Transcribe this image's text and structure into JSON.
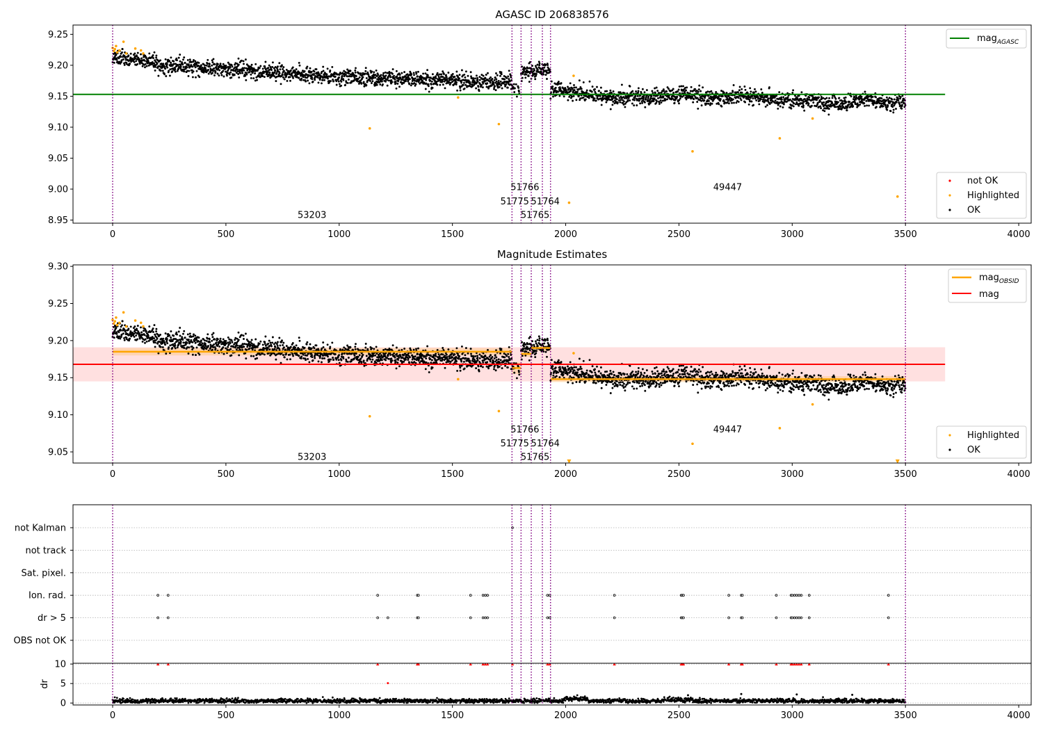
{
  "chart_data": [
    {
      "type": "scatter",
      "title": "AGASC ID 206838576",
      "xlim": [
        -175,
        4055
      ],
      "ylim": [
        8.945,
        9.265
      ],
      "xticks": [
        "0",
        "500",
        "1000",
        "1500",
        "2000",
        "2500",
        "3000",
        "3500",
        "4000"
      ],
      "yticks": [
        "8.95",
        "9.00",
        "9.05",
        "9.10",
        "9.15",
        "9.20",
        "9.25"
      ],
      "legend_top": {
        "placement": "top-right",
        "entries": [
          {
            "label": "mag",
            "sub": "AGASC",
            "color": "#008000"
          }
        ]
      },
      "legend_bottom": {
        "placement": "bottom-right",
        "entries": [
          {
            "label": "not OK",
            "color": "#ff0000"
          },
          {
            "label": "Highlighted",
            "color": "#ffa500"
          },
          {
            "label": "OK",
            "color": "#000000"
          }
        ]
      },
      "mag_agasc": 9.153,
      "agasc_line_x": [
        -175,
        3675
      ],
      "obsid_boundaries": [
        0,
        1763,
        1803,
        1848,
        1897,
        1933,
        3500
      ],
      "obsid_labels": [
        {
          "text": "53203",
          "x": 880,
          "y": 8.958
        },
        {
          "text": "51766",
          "x": 1820,
          "y": 9.003
        },
        {
          "text": "51775",
          "x": 1775,
          "y": 8.98
        },
        {
          "text": "51764",
          "x": 1910,
          "y": 8.98
        },
        {
          "text": "51765",
          "x": 1865,
          "y": 8.958
        },
        {
          "text": "49447",
          "x": 2715,
          "y": 9.003
        }
      ],
      "trend_segments": [
        {
          "x": [
            0,
            200
          ],
          "y": [
            9.212,
            9.205
          ]
        },
        {
          "x": [
            200,
            600
          ],
          "y": [
            9.2,
            9.192
          ]
        },
        {
          "x": [
            600,
            1000
          ],
          "y": [
            9.19,
            9.181
          ]
        },
        {
          "x": [
            1000,
            1400
          ],
          "y": [
            9.182,
            9.176
          ]
        },
        {
          "x": [
            1400,
            1763
          ],
          "y": [
            9.177,
            9.172
          ]
        },
        {
          "x": [
            1763,
            1803
          ],
          "y": [
            9.162,
            9.155
          ]
        },
        {
          "x": [
            1803,
            1933
          ],
          "y": [
            9.186,
            9.194
          ]
        },
        {
          "x": [
            1933,
            2200
          ],
          "y": [
            9.162,
            9.148
          ]
        },
        {
          "x": [
            2200,
            2800
          ],
          "y": [
            9.148,
            9.151
          ]
        },
        {
          "x": [
            2800,
            3100
          ],
          "y": [
            9.147,
            9.142
          ]
        },
        {
          "x": [
            3100,
            3500
          ],
          "y": [
            9.14,
            9.141
          ]
        }
      ],
      "highlighted_points": [
        {
          "x": 0,
          "y": 9.228
        },
        {
          "x": 5,
          "y": 9.223
        },
        {
          "x": 10,
          "y": 9.226
        },
        {
          "x": 15,
          "y": 9.231
        },
        {
          "x": 20,
          "y": 9.221
        },
        {
          "x": 30,
          "y": 9.224
        },
        {
          "x": 48,
          "y": 9.238
        },
        {
          "x": 60,
          "y": 9.219
        },
        {
          "x": 100,
          "y": 9.227
        },
        {
          "x": 125,
          "y": 9.224
        },
        {
          "x": 135,
          "y": 9.219
        },
        {
          "x": 1135,
          "y": 9.098
        },
        {
          "x": 1525,
          "y": 9.148
        },
        {
          "x": 1705,
          "y": 9.105
        },
        {
          "x": 2015,
          "y": 8.978
        },
        {
          "x": 2035,
          "y": 9.183
        },
        {
          "x": 2560,
          "y": 9.061
        },
        {
          "x": 2945,
          "y": 9.082
        },
        {
          "x": 3090,
          "y": 9.114
        },
        {
          "x": 3465,
          "y": 8.988
        }
      ]
    },
    {
      "type": "scatter",
      "title": "Magnitude Estimates",
      "xlim": [
        -175,
        4055
      ],
      "ylim": [
        9.035,
        9.302
      ],
      "xticks": [
        "0",
        "500",
        "1000",
        "1500",
        "2000",
        "2500",
        "3000",
        "3500",
        "4000"
      ],
      "yticks": [
        "9.05",
        "9.10",
        "9.15",
        "9.20",
        "9.25",
        "9.30"
      ],
      "legend_top": {
        "placement": "top-right",
        "entries": [
          {
            "label": "mag",
            "sub": "OBSID",
            "color": "#ffa500"
          },
          {
            "label": "mag",
            "sub": "",
            "color": "#ff0000"
          }
        ]
      },
      "legend_bottom": {
        "placement": "bottom-right",
        "entries": [
          {
            "label": "Highlighted",
            "color": "#ffa500"
          },
          {
            "label": "OK",
            "color": "#000000"
          }
        ]
      },
      "mag": 9.168,
      "mag_band": [
        9.145,
        9.191
      ],
      "mag_line_x": [
        -175,
        3675
      ],
      "obsid_mags": [
        {
          "x": [
            0,
            1763
          ],
          "y": 9.185,
          "band": [
            9.18,
            9.19
          ]
        },
        {
          "x": [
            1763,
            1803
          ],
          "y": 9.163,
          "band": [
            9.155,
            9.171
          ]
        },
        {
          "x": [
            1803,
            1848
          ],
          "y": 9.182,
          "band": [
            9.178,
            9.186
          ]
        },
        {
          "x": [
            1848,
            1897
          ],
          "y": 9.19,
          "band": [
            9.186,
            9.194
          ]
        },
        {
          "x": [
            1897,
            1933
          ],
          "y": 9.19,
          "band": [
            9.186,
            9.194
          ]
        },
        {
          "x": [
            1933,
            3500
          ],
          "y": 9.148,
          "band": [
            9.144,
            9.152
          ]
        }
      ],
      "obsid_labels": [
        {
          "text": "53203",
          "x": 880,
          "y": 9.043
        },
        {
          "text": "51766",
          "x": 1820,
          "y": 9.08
        },
        {
          "text": "51775",
          "x": 1775,
          "y": 9.061
        },
        {
          "text": "51764",
          "x": 1910,
          "y": 9.061
        },
        {
          "text": "51765",
          "x": 1865,
          "y": 9.043
        },
        {
          "text": "49447",
          "x": 2715,
          "y": 9.08
        }
      ],
      "trend_segments": [
        {
          "x": [
            0,
            200
          ],
          "y": [
            9.212,
            9.205
          ]
        },
        {
          "x": [
            200,
            600
          ],
          "y": [
            9.2,
            9.192
          ]
        },
        {
          "x": [
            600,
            1000
          ],
          "y": [
            9.19,
            9.181
          ]
        },
        {
          "x": [
            1000,
            1400
          ],
          "y": [
            9.182,
            9.176
          ]
        },
        {
          "x": [
            1400,
            1763
          ],
          "y": [
            9.177,
            9.172
          ]
        },
        {
          "x": [
            1763,
            1803
          ],
          "y": [
            9.162,
            9.155
          ]
        },
        {
          "x": [
            1803,
            1933
          ],
          "y": [
            9.186,
            9.194
          ]
        },
        {
          "x": [
            1933,
            2200
          ],
          "y": [
            9.162,
            9.148
          ]
        },
        {
          "x": [
            2200,
            2800
          ],
          "y": [
            9.148,
            9.151
          ]
        },
        {
          "x": [
            2800,
            3100
          ],
          "y": [
            9.147,
            9.142
          ]
        },
        {
          "x": [
            3100,
            3500
          ],
          "y": [
            9.14,
            9.141
          ]
        }
      ],
      "highlighted_points": [
        {
          "x": 0,
          "y": 9.228
        },
        {
          "x": 5,
          "y": 9.223
        },
        {
          "x": 10,
          "y": 9.226
        },
        {
          "x": 15,
          "y": 9.231
        },
        {
          "x": 20,
          "y": 9.221
        },
        {
          "x": 30,
          "y": 9.224
        },
        {
          "x": 48,
          "y": 9.238
        },
        {
          "x": 60,
          "y": 9.219
        },
        {
          "x": 100,
          "y": 9.227
        },
        {
          "x": 125,
          "y": 9.224
        },
        {
          "x": 135,
          "y": 9.219
        },
        {
          "x": 1135,
          "y": 9.098
        },
        {
          "x": 1525,
          "y": 9.148
        },
        {
          "x": 1705,
          "y": 9.105
        },
        {
          "x": 2035,
          "y": 9.183
        },
        {
          "x": 2560,
          "y": 9.061
        },
        {
          "x": 2945,
          "y": 9.082
        },
        {
          "x": 3090,
          "y": 9.114
        }
      ],
      "offscale_markers": [
        {
          "x": 2015,
          "y": 9.037
        },
        {
          "x": 3465,
          "y": 9.037
        }
      ]
    },
    {
      "type": "scatter",
      "title": "",
      "xlim": [
        -175,
        4055
      ],
      "flag_rows": [
        "not Kalman",
        "not track",
        "Sat. pixel.",
        "Ion. rad.",
        "dr > 5",
        "OBS not OK"
      ],
      "ion_rad_x": [
        200,
        245,
        1170,
        1345,
        1350,
        1580,
        1635,
        1645,
        1655,
        1920,
        1930,
        2215,
        2510,
        2515,
        2520,
        2720,
        2775,
        2780,
        2930,
        2995,
        3000,
        3010,
        3020,
        3030,
        3040,
        3075,
        3425
      ],
      "dr_gt_5_x": [
        200,
        245,
        1170,
        1215,
        1345,
        1350,
        1580,
        1635,
        1645,
        1655,
        1920,
        1930,
        2215,
        2510,
        2515,
        2520,
        2720,
        2775,
        2780,
        2930,
        2995,
        3000,
        3010,
        3020,
        3030,
        3040,
        3075,
        3425
      ],
      "not_kalman_x": [
        1765
      ],
      "dr_ylim": [
        -0.5,
        10.2
      ],
      "dr_yticks": [
        "0",
        "5",
        "10"
      ],
      "dr_ylabel": "dr",
      "dr_xticks": [
        "0",
        "500",
        "1000",
        "1500",
        "2000",
        "2500",
        "3000",
        "3500",
        "4000"
      ],
      "dr_clipped_x": [
        200,
        245,
        1170,
        1345,
        1350,
        1580,
        1635,
        1645,
        1655,
        1765,
        1920,
        1930,
        2215,
        2510,
        2515,
        2520,
        2720,
        2775,
        2780,
        2930,
        2995,
        3000,
        3010,
        3020,
        3030,
        3040,
        3075,
        3425
      ],
      "dr_outliers": [
        {
          "x": 1215,
          "y": 5.1
        },
        {
          "x": 2540,
          "y": 2.0
        },
        {
          "x": 2775,
          "y": 2.3
        },
        {
          "x": 3020,
          "y": 2.2
        },
        {
          "x": 3265,
          "y": 2.1
        }
      ]
    }
  ]
}
